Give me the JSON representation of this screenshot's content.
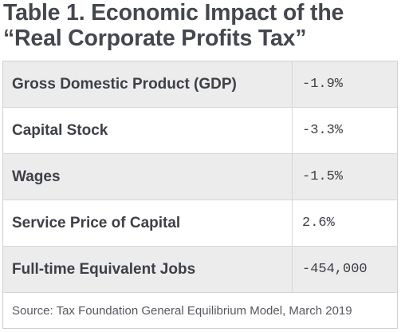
{
  "title": "Table 1. Economic Impact of the “Real Corporate Profits Tax”",
  "rows": [
    {
      "label": "Gross Domestic Product (GDP)",
      "value": "-1.9%"
    },
    {
      "label": "Capital Stock",
      "value": "-3.3%"
    },
    {
      "label": "Wages",
      "value": "-1.5%"
    },
    {
      "label": "Service Price of Capital",
      "value": "2.6%"
    },
    {
      "label": "Full-time Equivalent Jobs",
      "value": "-454,000"
    }
  ],
  "source": "Source: Tax Foundation General Equilibrium Model, March 2019",
  "colors": {
    "row_shaded": "#ececec",
    "row_white": "#ffffff",
    "text": "#3d4046",
    "border": "#d6d6d6"
  }
}
